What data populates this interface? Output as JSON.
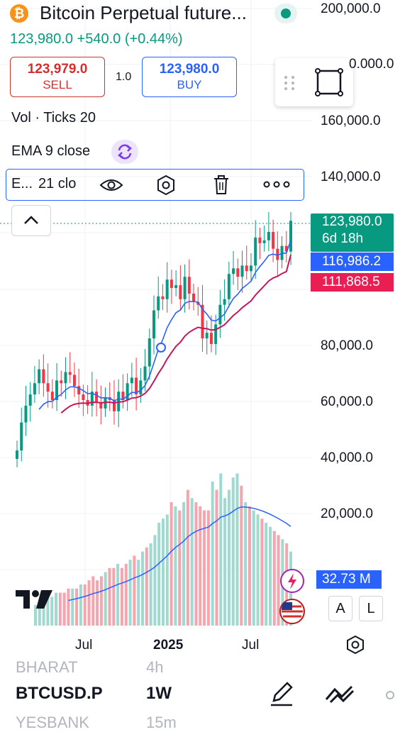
{
  "header": {
    "symbol_logo": "₿",
    "title": "Bitcoin Perpetual future...",
    "price_line": "123,980.0 +540.0 (+0.44%)"
  },
  "trade": {
    "sell_price": "123,979.0",
    "sell_label": "SELL",
    "spread": "1.0",
    "buy_price": "123,980.0",
    "buy_label": "BUY"
  },
  "indicators": {
    "vol": "Vol · Ticks 20",
    "ema9": "EMA 9 close",
    "ema21_short": "E...",
    "ema21_label": "21 clo"
  },
  "price_axis": {
    "labels": [
      "200,000.0",
      "0.000.0",
      "160,000.0",
      "140,000.0",
      "80,000.0",
      "60,000.0",
      "40,000.0",
      "20,000.0"
    ],
    "price_tag": "123,980.0",
    "countdown": "6d 18h",
    "ema9_tag": "116,986.2",
    "ema21_tag": "111,868.5",
    "volume_tag": "32.73 M"
  },
  "time_axis": {
    "labels": [
      "Jul",
      "2025",
      "Jul"
    ]
  },
  "buttons": {
    "auto_scale": "A",
    "log_scale": "L"
  },
  "bottom_bar": {
    "symbol": "BTCUSD.P",
    "interval": "1W",
    "ghost_above_symbol": "BHARAT",
    "ghost_above_interval": "4h",
    "ghost_below_symbol": "YESBANK",
    "ghost_below_interval": "15m"
  },
  "colors": {
    "up": "#089981",
    "down": "#f23645",
    "ema9": "#2962ff",
    "ema21": "#c2185b",
    "price_tag_bg": "#089981",
    "ema9_tag_bg": "#2962ff",
    "ema21_tag_bg": "#e91e53",
    "volume_tag_bg": "#2962ff"
  },
  "chart_data": {
    "type": "candlestick",
    "interval": "1W",
    "x_labels": [
      "Jul",
      "2025",
      "Jul"
    ],
    "ylim": [
      40000,
      200000
    ],
    "last_price": 123980,
    "ema9_last": 116986.2,
    "ema21_last": 111868.5,
    "volume_last": "32.73 M",
    "close_path": [
      42000,
      52000,
      58000,
      62000,
      66000,
      71000,
      66000,
      63000,
      60000,
      67000,
      66000,
      70000,
      69000,
      65000,
      62000,
      60000,
      58000,
      63000,
      59000,
      57000,
      61000,
      60000,
      56000,
      63000,
      60000,
      66000,
      68000,
      62000,
      67000,
      72000,
      82000,
      92000,
      97000,
      96000,
      103000,
      100000,
      101000,
      96000,
      104000,
      98000,
      95000,
      94000,
      82000,
      84000,
      80000,
      87000,
      94000,
      96000,
      105000,
      107000,
      104000,
      108000,
      106000,
      108000,
      118000,
      116000,
      117000,
      120000,
      114000,
      110000,
      115000,
      113000,
      120000
    ],
    "volume_path": [
      5,
      6,
      6,
      7,
      7,
      8,
      8,
      8,
      9,
      9,
      9,
      10,
      10,
      11,
      12,
      11,
      12,
      13,
      14,
      14,
      15,
      14,
      15,
      16,
      17,
      16,
      18,
      19,
      20,
      22,
      25,
      26,
      27,
      30,
      29,
      28,
      30,
      33,
      31,
      30,
      29,
      28,
      28,
      35,
      33,
      37,
      31,
      33,
      36,
      37,
      34,
      30,
      29,
      28,
      27,
      26,
      25,
      24,
      23,
      22,
      21,
      20,
      18
    ]
  }
}
